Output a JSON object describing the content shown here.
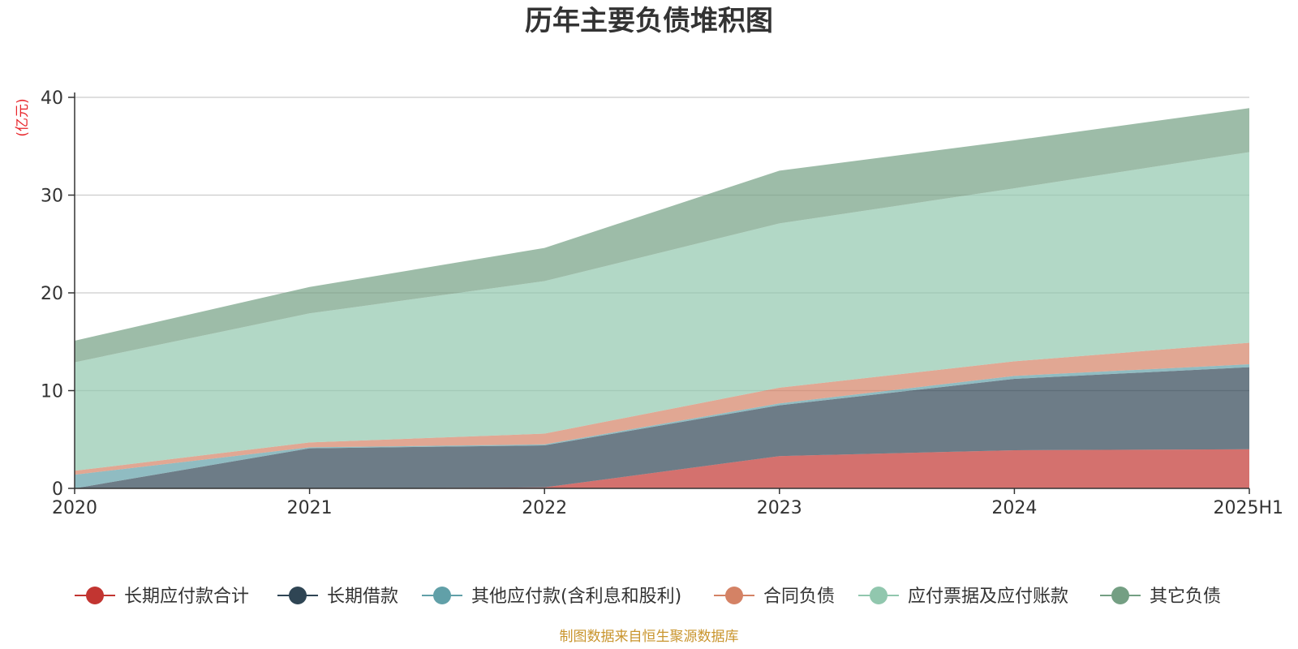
{
  "chart_data": {
    "type": "area",
    "stacked": true,
    "title": "历年主要负债堆积图",
    "unit_label": "(亿元)",
    "source_note": "制图数据来自恒生聚源数据库",
    "ylim": [
      0,
      40
    ],
    "yticks": [
      0,
      10,
      20,
      30,
      40
    ],
    "categories": [
      "2020",
      "2021",
      "2022",
      "2023",
      "2024",
      "2025H1"
    ],
    "grid": true,
    "legend_position": "bottom",
    "series": [
      {
        "name": "长期应付款合计",
        "color": "#c23531",
        "values": [
          0.0,
          0.0,
          0.1,
          3.3,
          3.9,
          4.0
        ]
      },
      {
        "name": "长期借款",
        "color": "#2f4554",
        "values": [
          0.0,
          4.1,
          4.3,
          5.2,
          7.3,
          8.4
        ]
      },
      {
        "name": "其他应付款(含利息和股利)",
        "color": "#61a0a8",
        "values": [
          1.4,
          0.1,
          0.1,
          0.2,
          0.3,
          0.3
        ]
      },
      {
        "name": "合同负债",
        "color": "#d48265",
        "values": [
          0.4,
          0.5,
          1.1,
          1.6,
          1.5,
          2.2
        ]
      },
      {
        "name": "应付票据及应付账款",
        "color": "#91c7ae",
        "values": [
          11.1,
          13.2,
          15.6,
          16.8,
          17.7,
          19.5
        ]
      },
      {
        "name": "其它负债",
        "color": "#749f83",
        "values": [
          2.2,
          2.7,
          3.4,
          5.4,
          4.9,
          4.5
        ]
      }
    ]
  }
}
